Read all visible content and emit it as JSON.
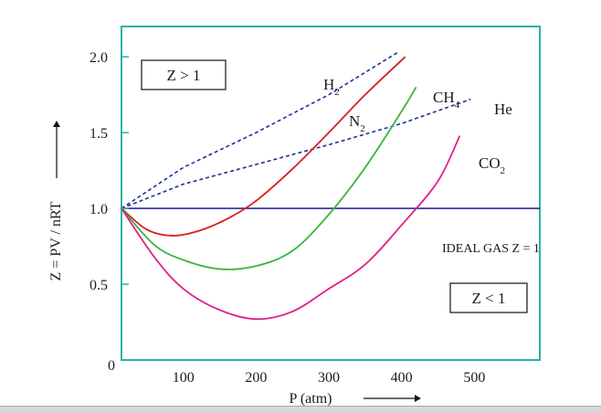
{
  "chart_data": {
    "type": "line",
    "xlabel": "P (atm)",
    "ylabel": "Z = PV / nRT",
    "xlim": [
      15,
      590
    ],
    "ylim": [
      0,
      2.2
    ],
    "x_ticks": [
      100,
      200,
      300,
      400,
      500
    ],
    "y_ticks": [
      {
        "value": 0.5,
        "label": "0.5"
      },
      {
        "value": 1.0,
        "label": "1.0"
      },
      {
        "value": 1.5,
        "label": "1.5"
      },
      {
        "value": 2.0,
        "label": "2.0"
      }
    ],
    "origin_label": "0",
    "grid": false,
    "reference_line": {
      "y": 1.0,
      "label": "IDEAL GAS Z = 1",
      "color": "#2a2a9a"
    },
    "annotations": [
      {
        "text": "Z > 1",
        "boxed": true
      },
      {
        "text": "Z < 1",
        "boxed": true
      }
    ],
    "series": [
      {
        "name": "H",
        "subscript": "2",
        "style": "dashed",
        "color": "#1f2f9a",
        "x": [
          15,
          100,
          200,
          300,
          395
        ],
        "y": [
          1.0,
          1.27,
          1.5,
          1.75,
          2.03
        ]
      },
      {
        "name": "He",
        "subscript": "",
        "style": "dashed",
        "color": "#1f2f9a",
        "x": [
          15,
          100,
          200,
          300,
          400,
          495
        ],
        "y": [
          1.0,
          1.16,
          1.29,
          1.42,
          1.56,
          1.72
        ]
      },
      {
        "name": "N",
        "subscript": "2",
        "style": "solid",
        "color": "#d62020",
        "x": [
          15,
          50,
          85,
          120,
          160,
          200,
          250,
          300,
          350,
          405
        ],
        "y": [
          1.0,
          0.86,
          0.82,
          0.85,
          0.93,
          1.05,
          1.26,
          1.5,
          1.75,
          2.0
        ]
      },
      {
        "name": "CH",
        "subscript": "4",
        "style": "solid",
        "color": "#3cb63c",
        "x": [
          15,
          60,
          100,
          150,
          200,
          250,
          300,
          350,
          400,
          420
        ],
        "y": [
          1.0,
          0.76,
          0.66,
          0.6,
          0.62,
          0.72,
          0.96,
          1.27,
          1.64,
          1.8
        ]
      },
      {
        "name": "CO",
        "subscript": "2",
        "style": "solid",
        "color": "#e0208a",
        "x": [
          15,
          60,
          100,
          150,
          200,
          250,
          300,
          350,
          400,
          450,
          480
        ],
        "y": [
          1.0,
          0.68,
          0.47,
          0.33,
          0.27,
          0.32,
          0.47,
          0.63,
          0.89,
          1.18,
          1.48
        ]
      }
    ],
    "frame_color": "#2bb3a6"
  }
}
